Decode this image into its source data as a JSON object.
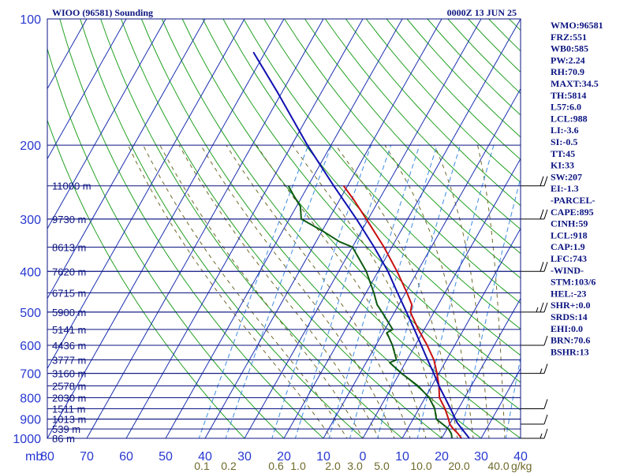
{
  "header": {
    "station": "WIOO (96581) Sounding",
    "time": "0000Z 13 JUN 25"
  },
  "indices": [
    "WMO:96581",
    "FRZ:551",
    "WB0:585",
    "PW:2.24",
    "RH:70.9",
    "MAXT:34.5",
    "TH:5814",
    "L57:6.0",
    "LCL:988",
    "LI:-3.6",
    "SI:-0.5",
    "TT:45",
    "KI:33",
    "SW:207",
    "EI:-1.3",
    "-PARCEL-",
    "CAPE:895",
    "CINH:59",
    "LCL:918",
    "CAP:1.9",
    "LFC:743",
    "-WIND-",
    "STM:103/6",
    "HEL:-23",
    "SHR+:0.0",
    "SRDS:14",
    "EHI:0.0",
    "BRN:70.6",
    "BSHR:13"
  ],
  "axes": {
    "pressure_unit": "mb",
    "mixing_ratio_unit": "g/kg"
  },
  "chart_data": {
    "type": "line",
    "title": "WIOO (96581) Sounding",
    "subtitle": "0000Z 13 JUN 25",
    "xlabel": "",
    "ylabel": "mb",
    "diagram": "skew-T log-P",
    "y_scale": "log",
    "ylim": [
      1000,
      100
    ],
    "xlim_at_1000mb": [
      -80,
      40
    ],
    "skew_degC_per_decade_pressure": 60,
    "pressure_ticks": [
      100,
      200,
      300,
      400,
      500,
      600,
      700,
      800,
      900,
      1000
    ],
    "temperature_ticks": [
      -80,
      -70,
      -60,
      -50,
      -40,
      -30,
      -20,
      -10,
      0,
      10,
      20,
      30,
      40
    ],
    "temperature_tick_labels": [
      "80",
      "70",
      "60",
      "50",
      "40",
      "30",
      "20",
      "10",
      "0",
      "10",
      "20",
      "30",
      "40"
    ],
    "mixing_ratio_labels": [
      {
        "w": 0.1,
        "label": "0.1"
      },
      {
        "w": 0.2,
        "label": "0.2"
      },
      {
        "w": 0.6,
        "label": "0.6"
      },
      {
        "w": 1.0,
        "label": "1.0"
      },
      {
        "w": 2.0,
        "label": "2.0"
      },
      {
        "w": 3.0,
        "label": "3.0"
      },
      {
        "w": 5.0,
        "label": "5.0"
      },
      {
        "w": 10.0,
        "label": "10.0"
      },
      {
        "w": 20.0,
        "label": "20.0"
      },
      {
        "w": 40.0,
        "label": "40.0"
      }
    ],
    "height_labels": [
      {
        "p": 250,
        "label": "11000 m"
      },
      {
        "p": 300,
        "label": "9730 m"
      },
      {
        "p": 350,
        "label": "8613 m"
      },
      {
        "p": 400,
        "label": "7620 m"
      },
      {
        "p": 450,
        "label": "6715 m"
      },
      {
        "p": 500,
        "label": "5900 m"
      },
      {
        "p": 550,
        "label": "5141 m"
      },
      {
        "p": 600,
        "label": "4436 m"
      },
      {
        "p": 650,
        "label": "3777 m"
      },
      {
        "p": 700,
        "label": "3160 m"
      },
      {
        "p": 750,
        "label": "2578 m"
      },
      {
        "p": 800,
        "label": "2030 m"
      },
      {
        "p": 850,
        "label": "1511 m"
      },
      {
        "p": 900,
        "label": "1013 m"
      },
      {
        "p": 950,
        "label": "539 m"
      },
      {
        "p": 1000,
        "label": "86 m"
      }
    ],
    "series": [
      {
        "name": "",
        "kind": "temperature",
        "color": "#c81010",
        "points": [
          {
            "p": 1000,
            "t": 25.0
          },
          {
            "p": 975,
            "t": 23.5
          },
          {
            "p": 950,
            "t": 21.6
          },
          {
            "p": 925,
            "t": 20.0
          },
          {
            "p": 900,
            "t": 19.0
          },
          {
            "p": 850,
            "t": 16.6
          },
          {
            "p": 800,
            "t": 13.6
          },
          {
            "p": 750,
            "t": 11.8
          },
          {
            "p": 700,
            "t": 9.5
          },
          {
            "p": 650,
            "t": 6.8
          },
          {
            "p": 600,
            "t": 3.0
          },
          {
            "p": 550,
            "t": -1.5
          },
          {
            "p": 500,
            "t": -6.0
          },
          {
            "p": 480,
            "t": -6.7
          },
          {
            "p": 450,
            "t": -9.6
          },
          {
            "p": 400,
            "t": -15.2
          },
          {
            "p": 350,
            "t": -22.0
          },
          {
            "p": 300,
            "t": -30.5
          },
          {
            "p": 270,
            "t": -36.4
          },
          {
            "p": 250,
            "t": -41.0
          }
        ]
      },
      {
        "name": "",
        "kind": "dewpoint",
        "color": "#0c5a10",
        "points": [
          {
            "p": 1000,
            "t": 22.6
          },
          {
            "p": 975,
            "t": 21.8
          },
          {
            "p": 950,
            "t": 20.4
          },
          {
            "p": 925,
            "t": 18.2
          },
          {
            "p": 900,
            "t": 15.9
          },
          {
            "p": 850,
            "t": 14.0
          },
          {
            "p": 800,
            "t": 11.0
          },
          {
            "p": 750,
            "t": 6.5
          },
          {
            "p": 700,
            "t": 0.5
          },
          {
            "p": 660,
            "t": -4.0
          },
          {
            "p": 650,
            "t": -2.7
          },
          {
            "p": 600,
            "t": -5.8
          },
          {
            "p": 560,
            "t": -9.0
          },
          {
            "p": 550,
            "t": -8.0
          },
          {
            "p": 500,
            "t": -13.2
          },
          {
            "p": 480,
            "t": -15.5
          },
          {
            "p": 450,
            "t": -18.0
          },
          {
            "p": 400,
            "t": -23.0
          },
          {
            "p": 350,
            "t": -30.0
          },
          {
            "p": 340,
            "t": -34.0
          },
          {
            "p": 320,
            "t": -40.0
          },
          {
            "p": 300,
            "t": -47.0
          },
          {
            "p": 280,
            "t": -49.0
          },
          {
            "p": 265,
            "t": -52.0
          },
          {
            "p": 250,
            "t": -55.0
          }
        ]
      },
      {
        "name": "",
        "kind": "parcel",
        "color": "#1010b0",
        "points": [
          {
            "p": 1000,
            "t": 27.0
          },
          {
            "p": 950,
            "t": 23.8
          },
          {
            "p": 918,
            "t": 21.7
          },
          {
            "p": 850,
            "t": 18.0
          },
          {
            "p": 800,
            "t": 15.0
          },
          {
            "p": 750,
            "t": 11.8
          },
          {
            "p": 700,
            "t": 8.7
          },
          {
            "p": 650,
            "t": 5.2
          },
          {
            "p": 600,
            "t": 1.5
          },
          {
            "p": 550,
            "t": -2.5
          },
          {
            "p": 500,
            "t": -7.0
          },
          {
            "p": 450,
            "t": -12.0
          },
          {
            "p": 400,
            "t": -17.5
          },
          {
            "p": 350,
            "t": -24.5
          },
          {
            "p": 300,
            "t": -33.0
          },
          {
            "p": 250,
            "t": -43.5
          },
          {
            "p": 200,
            "t": -56.0
          },
          {
            "p": 150,
            "t": -71.0
          },
          {
            "p": 120,
            "t": -83.0
          }
        ]
      }
    ],
    "wind_profile": [
      {
        "p": 1000,
        "dir": 270,
        "spd": 5
      },
      {
        "p": 925,
        "dir": 260,
        "spd": 10
      },
      {
        "p": 850,
        "dir": 250,
        "spd": 10
      },
      {
        "p": 700,
        "dir": 230,
        "spd": 5
      },
      {
        "p": 600,
        "dir": 220,
        "spd": 10
      },
      {
        "p": 500,
        "dir": 200,
        "spd": 15
      },
      {
        "p": 400,
        "dir": 190,
        "spd": 20
      },
      {
        "p": 300,
        "dir": 180,
        "spd": 20
      },
      {
        "p": 250,
        "dir": 180,
        "spd": 20
      }
    ],
    "grid": true,
    "colors": {
      "frame": "#0c1480",
      "isotherm": "#1a2fb0",
      "dry_adiabat": "#22a022",
      "moist_adiabat": "#6f6a2b",
      "mixing_ratio": "#3c8ce0",
      "temperature": "#c81010",
      "dewpoint": "#0c5a10",
      "parcel": "#1010b0"
    }
  }
}
